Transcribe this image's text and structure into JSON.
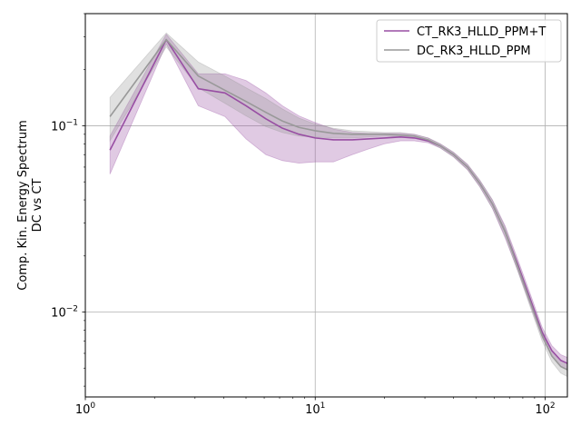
{
  "chart_data": {
    "type": "line",
    "xscale": "log",
    "yscale": "log",
    "xlim": [
      1,
      125
    ],
    "ylim": [
      0.0035,
      0.4
    ],
    "ylabel_lines": [
      "Comp. Kin. Energy Spectrum",
      "DC vs CT"
    ],
    "xlabel": "",
    "title": "",
    "grid": true,
    "legend_position": "upper-right",
    "x_ticks": [
      {
        "value": 1,
        "base": "10",
        "exp": "0"
      },
      {
        "value": 10,
        "base": "10",
        "exp": "1"
      },
      {
        "value": 100,
        "base": "10",
        "exp": "2"
      }
    ],
    "y_ticks": [
      {
        "value": 0.01,
        "base": "10",
        "exp": "−2"
      },
      {
        "value": 0.1,
        "base": "10",
        "exp": "−1"
      }
    ],
    "series": [
      {
        "name": "CT_RK3_HLLD_PPM+T",
        "color": "#984ea3",
        "band_alpha": 0.3,
        "x": [
          1.28,
          2.25,
          3.1,
          4.05,
          5.0,
          6.1,
          7.2,
          8.5,
          10.0,
          12.0,
          14.5,
          17.0,
          20.0,
          23.5,
          27.0,
          31.0,
          35.0,
          40.0,
          46.0,
          52.0,
          59.0,
          67.0,
          76.0,
          86.0,
          97.0,
          107.0,
          117.0,
          125.0
        ],
        "y": [
          0.074,
          0.29,
          0.158,
          0.15,
          0.128,
          0.109,
          0.097,
          0.09,
          0.086,
          0.084,
          0.084,
          0.085,
          0.086,
          0.087,
          0.086,
          0.083,
          0.078,
          0.07,
          0.06,
          0.049,
          0.038,
          0.027,
          0.018,
          0.0118,
          0.0078,
          0.0062,
          0.0055,
          0.0053
        ],
        "lower": [
          0.055,
          0.275,
          0.128,
          0.112,
          0.085,
          0.07,
          0.065,
          0.063,
          0.064,
          0.064,
          0.07,
          0.075,
          0.08,
          0.083,
          0.083,
          0.081,
          0.076,
          0.068,
          0.058,
          0.047,
          0.036,
          0.025,
          0.0167,
          0.011,
          0.0073,
          0.0058,
          0.0051,
          0.0049
        ],
        "upper": [
          0.088,
          0.31,
          0.19,
          0.19,
          0.175,
          0.15,
          0.128,
          0.113,
          0.104,
          0.096,
          0.092,
          0.091,
          0.091,
          0.091,
          0.09,
          0.086,
          0.08,
          0.072,
          0.062,
          0.051,
          0.04,
          0.029,
          0.0192,
          0.0126,
          0.0083,
          0.0066,
          0.0059,
          0.0057
        ]
      },
      {
        "name": "DC_RK3_HLLD_PPM",
        "color": "#999999",
        "band_alpha": 0.3,
        "x": [
          1.28,
          2.25,
          3.1,
          4.05,
          5.0,
          6.1,
          7.2,
          8.5,
          10.0,
          12.0,
          14.5,
          17.0,
          20.0,
          23.5,
          27.0,
          31.0,
          35.0,
          40.0,
          46.0,
          52.0,
          59.0,
          67.0,
          76.0,
          86.0,
          97.0,
          107.0,
          117.0,
          125.0
        ],
        "y": [
          0.112,
          0.29,
          0.185,
          0.155,
          0.135,
          0.118,
          0.106,
          0.098,
          0.094,
          0.091,
          0.09,
          0.09,
          0.09,
          0.089,
          0.088,
          0.084,
          0.078,
          0.07,
          0.06,
          0.049,
          0.038,
          0.027,
          0.0175,
          0.0114,
          0.0075,
          0.0058,
          0.0051,
          0.0049
        ],
        "lower": [
          0.083,
          0.265,
          0.16,
          0.132,
          0.113,
          0.099,
          0.092,
          0.088,
          0.087,
          0.086,
          0.086,
          0.087,
          0.088,
          0.087,
          0.086,
          0.082,
          0.076,
          0.068,
          0.058,
          0.047,
          0.036,
          0.0255,
          0.0166,
          0.0107,
          0.007,
          0.0054,
          0.0047,
          0.0045
        ],
        "upper": [
          0.142,
          0.315,
          0.22,
          0.185,
          0.16,
          0.14,
          0.123,
          0.11,
          0.102,
          0.097,
          0.094,
          0.093,
          0.092,
          0.092,
          0.09,
          0.086,
          0.08,
          0.072,
          0.062,
          0.051,
          0.04,
          0.0285,
          0.0185,
          0.0121,
          0.008,
          0.0062,
          0.0055,
          0.0053
        ]
      }
    ]
  }
}
